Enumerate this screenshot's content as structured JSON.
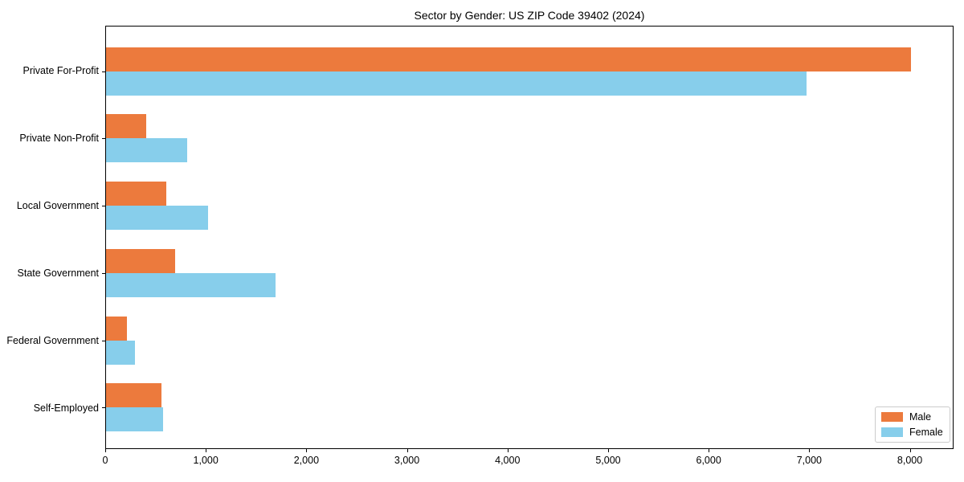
{
  "title": "Sector by Gender: US ZIP Code 39402 (2024)",
  "chart_data": {
    "type": "bar",
    "orientation": "horizontal",
    "title": "Sector by Gender: US ZIP Code 39402 (2024)",
    "categories": [
      "Private For-Profit",
      "Private Non-Profit",
      "Local Government",
      "State Government",
      "Federal Government",
      "Self-Employed"
    ],
    "series": [
      {
        "name": "Male",
        "color": "#EC7A3D",
        "values": [
          8020,
          400,
          600,
          690,
          210,
          555
        ]
      },
      {
        "name": "Female",
        "color": "#87CEEB",
        "values": [
          6975,
          810,
          1020,
          1690,
          285,
          565
        ]
      }
    ],
    "xlabel": "",
    "ylabel": "",
    "xlim": [
      0,
      8435
    ],
    "xticks": [
      0,
      1000,
      2000,
      3000,
      4000,
      5000,
      6000,
      7000,
      8000
    ],
    "xtick_labels": [
      "0",
      "1,000",
      "2,000",
      "3,000",
      "4,000",
      "5,000",
      "6,000",
      "7,000",
      "8,000"
    ],
    "grid": false,
    "legend_position": "lower right"
  },
  "colors": {
    "male": "#EC7A3D",
    "female": "#87CEEB",
    "spine": "#000000",
    "background": "#ffffff",
    "legend_border": "#cccccc",
    "text": "#000000"
  }
}
